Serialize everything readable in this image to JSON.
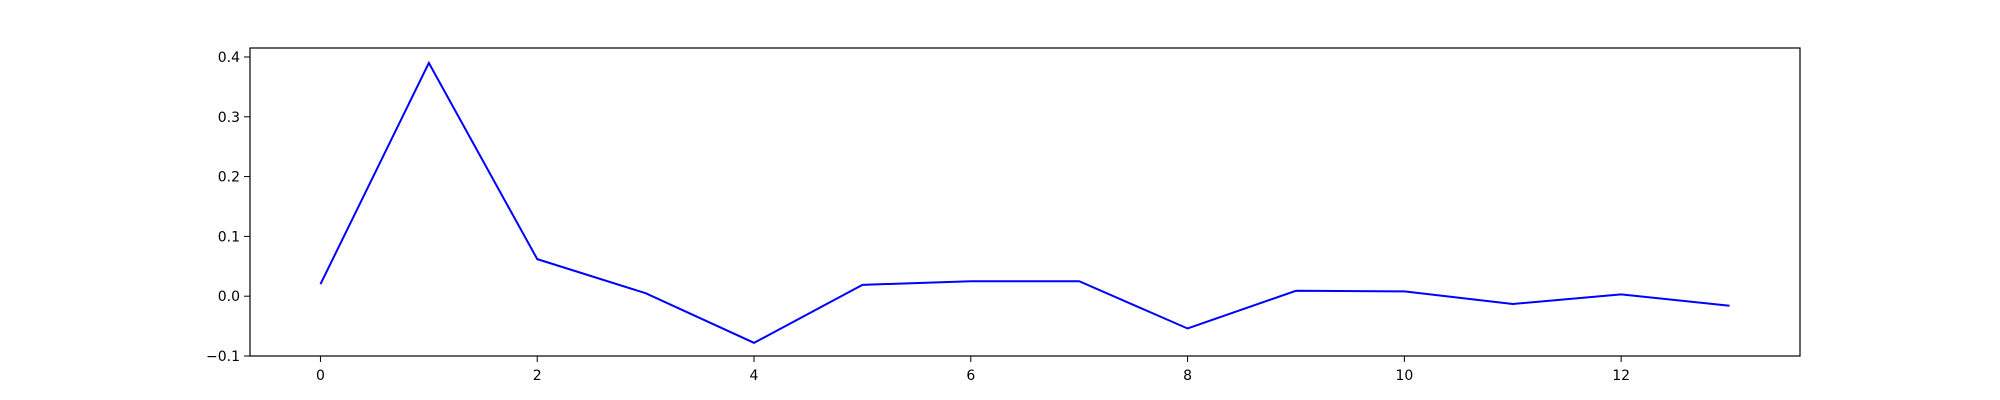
{
  "chart_data": {
    "type": "line",
    "title": "",
    "xlabel": "",
    "ylabel": "",
    "xlim": [
      -0.65,
      13.65
    ],
    "ylim": [
      -0.1,
      0.415
    ],
    "grid": false,
    "x_ticks": [
      0,
      2,
      4,
      6,
      8,
      10,
      12
    ],
    "x_tick_labels": [
      "0",
      "2",
      "4",
      "6",
      "8",
      "10",
      "12"
    ],
    "y_ticks": [
      -0.1,
      0.0,
      0.1,
      0.2,
      0.3,
      0.4
    ],
    "y_tick_labels": [
      "−0.1",
      "0.0",
      "0.1",
      "0.2",
      "0.3",
      "0.4"
    ],
    "series": [
      {
        "color": "#0000ff",
        "x": [
          0,
          1,
          2,
          3,
          4,
          5,
          6,
          7,
          8,
          9,
          10,
          11,
          12,
          13
        ],
        "values": [
          0.02,
          0.39,
          0.062,
          0.005,
          -0.078,
          0.019,
          0.025,
          0.025,
          -0.054,
          0.009,
          0.008,
          -0.013,
          0.003,
          -0.016
        ]
      }
    ]
  }
}
